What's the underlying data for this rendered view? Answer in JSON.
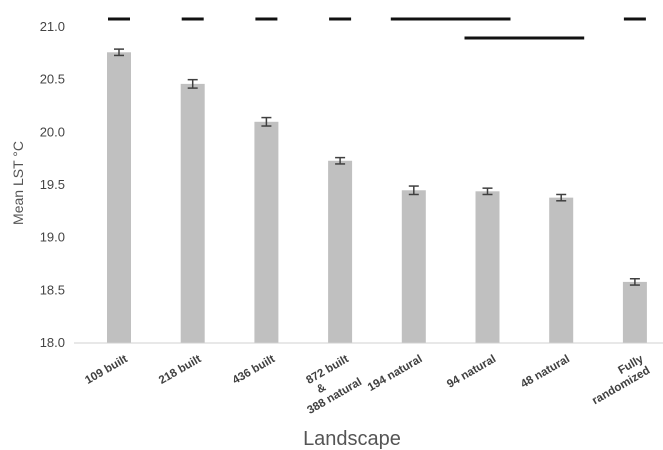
{
  "chart_data": {
    "type": "bar",
    "title": "",
    "xlabel": "Landscape",
    "ylabel": "Mean LST °C",
    "ylim": [
      18.0,
      21.0
    ],
    "yticks": [
      "18.0",
      "18.5",
      "19.0",
      "19.5",
      "20.0",
      "20.5",
      "21.0"
    ],
    "grid": false,
    "legend": "none",
    "bar_color": "#c0c0c0",
    "error_bar_color": "#404040",
    "significance_line_color": "#111111",
    "categories": [
      [
        "109 built"
      ],
      [
        "218 built"
      ],
      [
        "436 built"
      ],
      [
        "872 built",
        "&",
        "388 natural"
      ],
      [
        "194 natural"
      ],
      [
        "94 natural"
      ],
      [
        "48 natural"
      ],
      [
        "Fully",
        "randomized"
      ]
    ],
    "values": [
      20.76,
      20.46,
      20.1,
      19.73,
      19.45,
      19.44,
      19.38,
      18.58
    ],
    "errors": [
      0.03,
      0.04,
      0.04,
      0.03,
      0.04,
      0.03,
      0.03,
      0.03
    ],
    "significance_groups": [
      {
        "from": 0,
        "to": 0,
        "level": 0
      },
      {
        "from": 1,
        "to": 1,
        "level": 0
      },
      {
        "from": 2,
        "to": 2,
        "level": 0
      },
      {
        "from": 3,
        "to": 3,
        "level": 0
      },
      {
        "from": 4,
        "to": 5,
        "level": 0
      },
      {
        "from": 5,
        "to": 6,
        "level": 1
      },
      {
        "from": 7,
        "to": 7,
        "level": 0
      }
    ]
  }
}
